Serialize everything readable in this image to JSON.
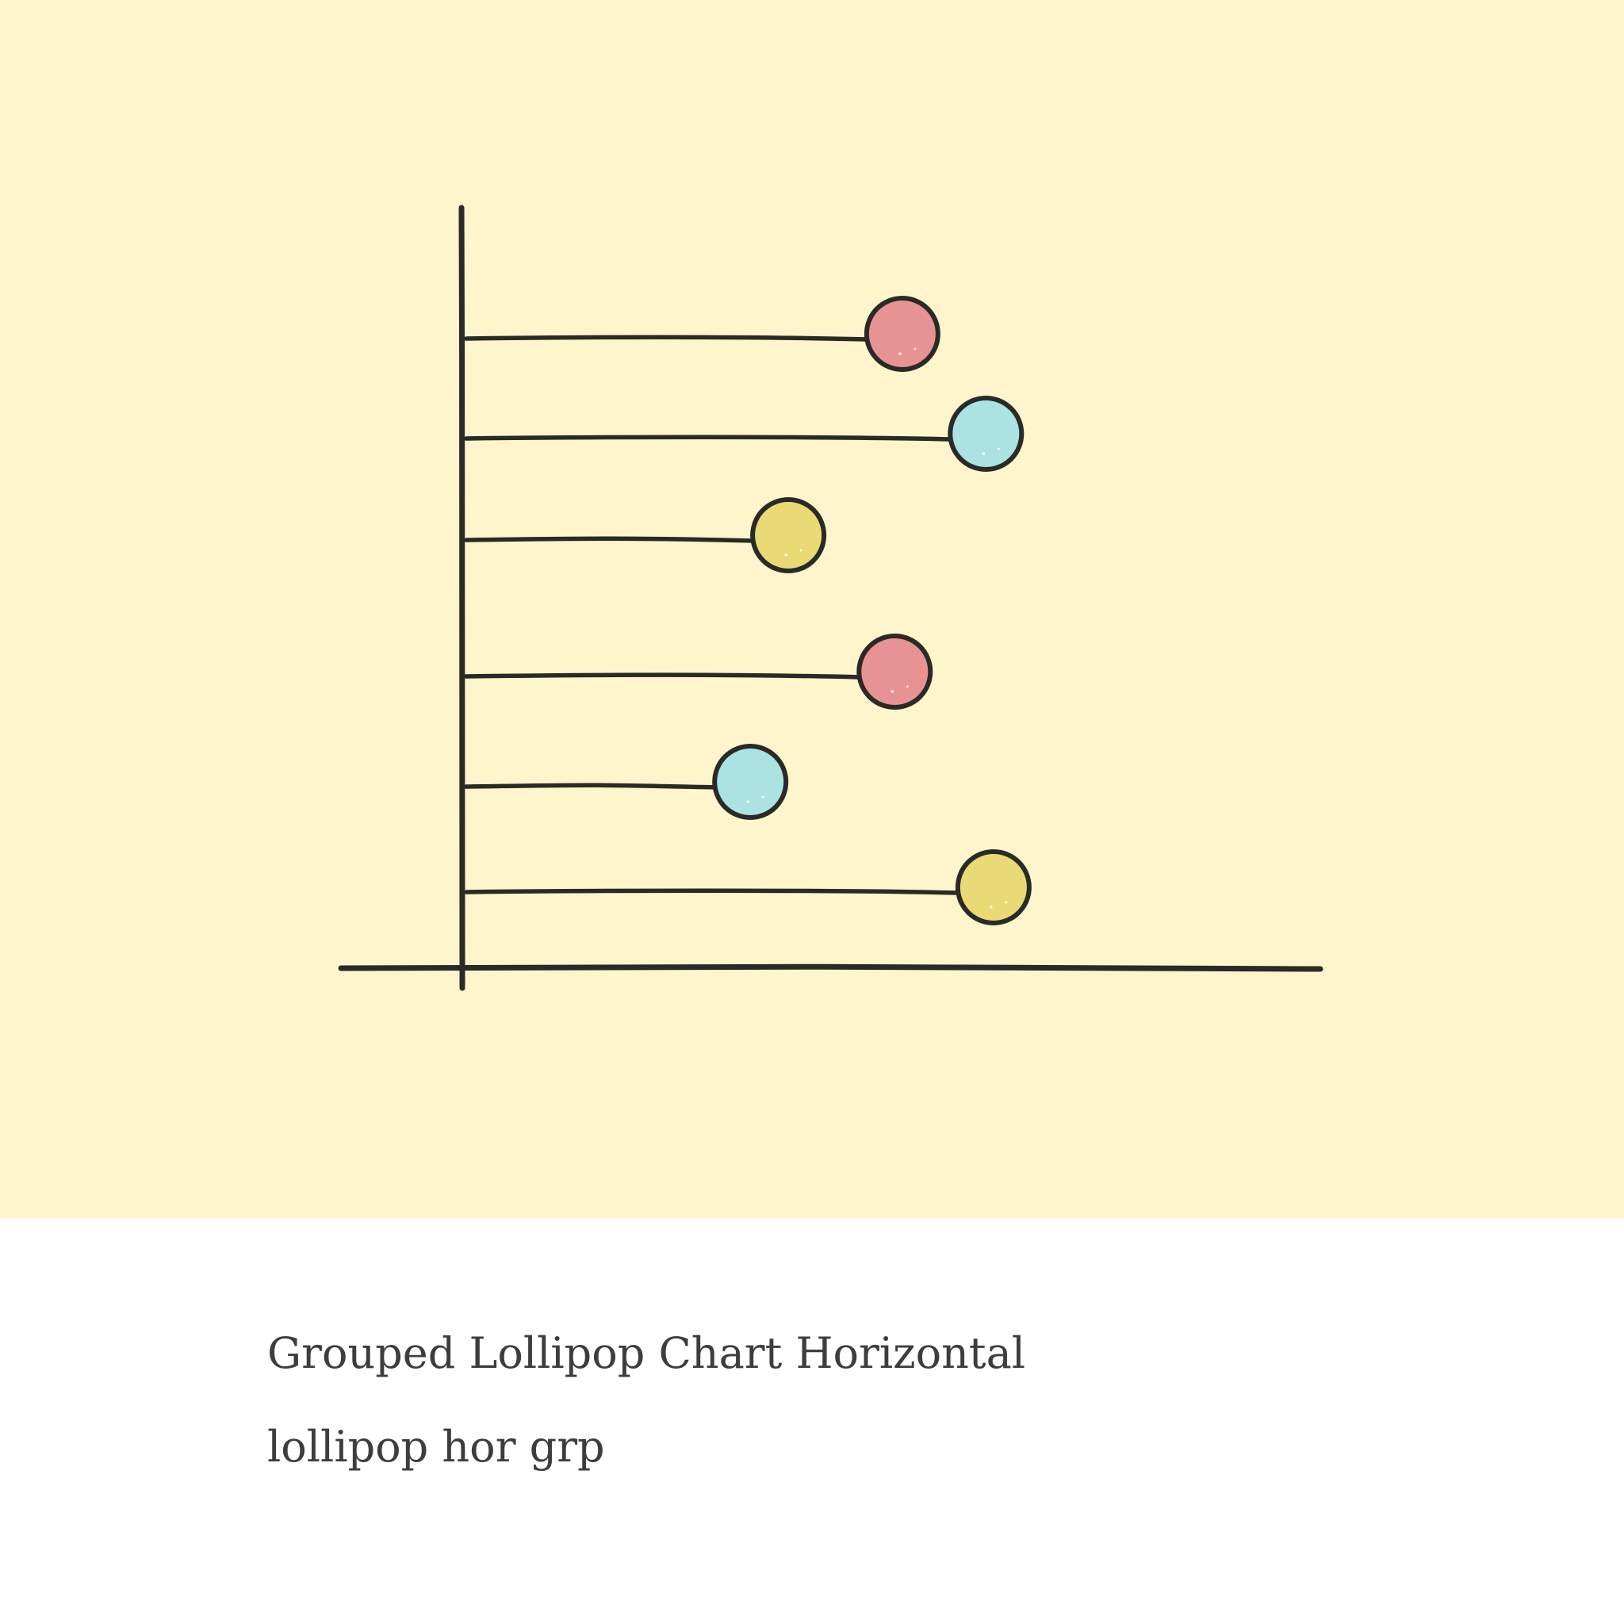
{
  "card": {
    "title": "Grouped Lollipop Chart Horizontal",
    "subtitle": "lollipop hor grp"
  },
  "chart_data": {
    "type": "lollipop",
    "orientation": "horizontal",
    "grouped": true,
    "categories": [
      "",
      "",
      "",
      "",
      "",
      ""
    ],
    "values": [
      58,
      69,
      43,
      57,
      38,
      70
    ],
    "colors": [
      "#e89393",
      "#abe3e3",
      "#eada75",
      "#e89393",
      "#abe3e3",
      "#eada75"
    ],
    "xlim": [
      0,
      113
    ],
    "grid": false,
    "legend": "none",
    "style": "hand-drawn",
    "title": "",
    "xlabel": "",
    "ylabel": ""
  }
}
